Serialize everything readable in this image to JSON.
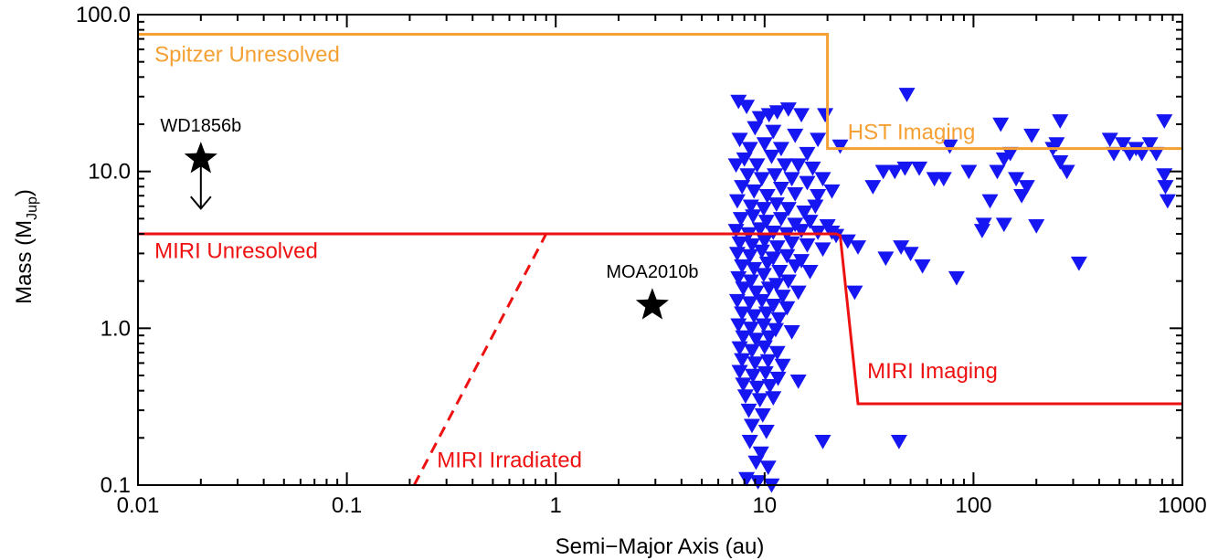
{
  "chart_data": {
    "type": "scatter",
    "title": "",
    "xlabel": "Semi−Major Axis (au)",
    "ylabel_main": "Mass (M",
    "ylabel_sub": "Jup",
    "ylabel_end": ")",
    "xscale": "log",
    "yscale": "log",
    "xlim": [
      0.01,
      1000
    ],
    "ylim": [
      0.1,
      100
    ],
    "grid": false,
    "x_ticks": [
      {
        "value": 0.01,
        "label": "0.01"
      },
      {
        "value": 0.1,
        "label": "0.1"
      },
      {
        "value": 1,
        "label": "1"
      },
      {
        "value": 10,
        "label": "10"
      },
      {
        "value": 100,
        "label": "100"
      },
      {
        "value": 1000,
        "label": "1000"
      }
    ],
    "y_ticks": [
      {
        "value": 0.1,
        "label": "0.1"
      },
      {
        "value": 1,
        "label": "1.0"
      },
      {
        "value": 10,
        "label": "10.0"
      },
      {
        "value": 100,
        "label": "100.0"
      }
    ],
    "limit_curves": [
      {
        "name": "Spitzer Unresolved",
        "color": "#f5a033",
        "dashed": false,
        "points": [
          [
            0.01,
            75
          ],
          [
            20,
            75
          ],
          [
            20,
            14
          ],
          [
            1000,
            14
          ]
        ]
      },
      {
        "name": "MIRI Unresolved",
        "color": "#ee1111",
        "dashed": false,
        "points": [
          [
            0.01,
            4
          ],
          [
            22,
            4
          ],
          [
            23,
            3.9
          ],
          [
            28,
            0.33
          ],
          [
            1000,
            0.33
          ]
        ]
      },
      {
        "name": "MIRI Irradiated",
        "color": "#ee1111",
        "dashed": true,
        "points": [
          [
            0.21,
            0.1
          ],
          [
            0.9,
            4
          ]
        ]
      }
    ],
    "annotations": [
      {
        "text": "Spitzer Unresolved",
        "x": 0.012,
        "y": 50,
        "color": "#f5a033"
      },
      {
        "text": "HST Imaging",
        "x": 25,
        "y": 16,
        "color": "#f5a033"
      },
      {
        "text": "MIRI Unresolved",
        "x": 0.012,
        "y": 2.8,
        "color": "#ee1111"
      },
      {
        "text": "MIRI Imaging",
        "x": 31,
        "y": 0.48,
        "color": "#ee1111"
      },
      {
        "text": "MIRI Irradiated",
        "x": 0.27,
        "y": 0.13,
        "color": "#ee1111"
      }
    ],
    "stars": [
      {
        "name": "WD1856b",
        "x": 0.02,
        "y": 12,
        "upper_limit_to": 5.8
      },
      {
        "name": "MOA2010b",
        "x": 2.9,
        "y": 1.4
      }
    ],
    "triangle_color": "#1616f2",
    "points": [
      [
        7.5,
        28
      ],
      [
        8.2,
        26
      ],
      [
        9.5,
        22
      ],
      [
        10.5,
        23
      ],
      [
        11.5,
        24
      ],
      [
        13,
        25
      ],
      [
        15,
        23
      ],
      [
        19.5,
        23
      ],
      [
        9,
        19
      ],
      [
        11,
        18
      ],
      [
        14,
        17
      ],
      [
        18,
        16
      ],
      [
        7.6,
        16
      ],
      [
        8.5,
        14
      ],
      [
        10,
        15
      ],
      [
        12,
        14
      ],
      [
        16,
        13
      ],
      [
        8,
        12
      ],
      [
        9.2,
        11
      ],
      [
        10.8,
        12.5
      ],
      [
        12.5,
        11
      ],
      [
        14.5,
        11
      ],
      [
        17,
        10.5
      ],
      [
        7.3,
        11
      ],
      [
        8.3,
        9.5
      ],
      [
        9.7,
        9
      ],
      [
        11.2,
        9.5
      ],
      [
        13.5,
        9
      ],
      [
        16,
        8.5
      ],
      [
        19,
        9
      ],
      [
        7.8,
        8
      ],
      [
        8.9,
        7.5
      ],
      [
        10.3,
        7
      ],
      [
        12,
        7.8
      ],
      [
        14,
        7.2
      ],
      [
        18,
        7
      ],
      [
        21,
        7.5
      ],
      [
        7.4,
        6.5
      ],
      [
        8.6,
        6
      ],
      [
        9.9,
        5.8
      ],
      [
        11.4,
        6.2
      ],
      [
        13,
        5.8
      ],
      [
        15.5,
        5.5
      ],
      [
        17.5,
        6
      ],
      [
        7.7,
        5
      ],
      [
        8.8,
        5.2
      ],
      [
        10.2,
        4.8
      ],
      [
        12,
        5
      ],
      [
        14,
        4.6
      ],
      [
        16.5,
        4.8
      ],
      [
        20,
        4.5
      ],
      [
        7.3,
        4.2
      ],
      [
        8.4,
        4
      ],
      [
        9.5,
        4.3
      ],
      [
        11,
        4.1
      ],
      [
        12.8,
        4
      ],
      [
        15,
        4.2
      ],
      [
        18,
        4.1
      ],
      [
        22,
        3.9
      ],
      [
        7.6,
        3.5
      ],
      [
        8.7,
        3.4
      ],
      [
        10,
        3.6
      ],
      [
        11.5,
        3.3
      ],
      [
        13.5,
        3.5
      ],
      [
        16,
        3.4
      ],
      [
        19,
        3.2
      ],
      [
        7.4,
        3
      ],
      [
        8.5,
        2.9
      ],
      [
        9.7,
        3.1
      ],
      [
        11,
        2.8
      ],
      [
        12.8,
        2.9
      ],
      [
        15,
        2.7
      ],
      [
        7.8,
        2.5
      ],
      [
        8.9,
        2.4
      ],
      [
        10.3,
        2.6
      ],
      [
        11.8,
        2.3
      ],
      [
        14,
        2.5
      ],
      [
        16.5,
        2.3
      ],
      [
        7.5,
        2.1
      ],
      [
        8.6,
        2
      ],
      [
        9.9,
        2.2
      ],
      [
        11.4,
        1.9
      ],
      [
        13,
        2
      ],
      [
        7.9,
        1.8
      ],
      [
        9.1,
        1.7
      ],
      [
        10.5,
        1.8
      ],
      [
        12.2,
        1.6
      ],
      [
        14.5,
        1.7
      ],
      [
        7.4,
        1.5
      ],
      [
        8.5,
        1.45
      ],
      [
        9.7,
        1.5
      ],
      [
        11,
        1.4
      ],
      [
        12.8,
        1.35
      ],
      [
        7.8,
        1.25
      ],
      [
        8.9,
        1.2
      ],
      [
        10.2,
        1.25
      ],
      [
        11.7,
        1.15
      ],
      [
        7.5,
        1.05
      ],
      [
        8.6,
        1
      ],
      [
        9.9,
        1.05
      ],
      [
        11.3,
        0.98
      ],
      [
        13.5,
        0.95
      ],
      [
        7.9,
        0.88
      ],
      [
        9.1,
        0.85
      ],
      [
        10.5,
        0.88
      ],
      [
        7.6,
        0.75
      ],
      [
        8.7,
        0.72
      ],
      [
        10,
        0.76
      ],
      [
        11.5,
        0.7
      ],
      [
        7.8,
        0.63
      ],
      [
        9,
        0.6
      ],
      [
        10.4,
        0.62
      ],
      [
        12.2,
        0.58
      ],
      [
        7.6,
        0.53
      ],
      [
        8.8,
        0.5
      ],
      [
        10.1,
        0.52
      ],
      [
        11.6,
        0.48
      ],
      [
        14.5,
        0.46
      ],
      [
        7.9,
        0.44
      ],
      [
        9.2,
        0.42
      ],
      [
        10.6,
        0.43
      ],
      [
        8.1,
        0.37
      ],
      [
        9.5,
        0.35
      ],
      [
        11,
        0.36
      ],
      [
        8.4,
        0.3
      ],
      [
        9.8,
        0.28
      ],
      [
        8.7,
        0.24
      ],
      [
        10.2,
        0.22
      ],
      [
        8.5,
        0.19
      ],
      [
        9.6,
        0.16
      ],
      [
        9.1,
        0.14
      ],
      [
        10.4,
        0.13
      ],
      [
        8.2,
        0.11
      ],
      [
        9.3,
        0.105
      ],
      [
        10.8,
        0.1
      ],
      [
        19,
        0.19
      ],
      [
        44,
        0.19
      ],
      [
        25,
        3.6
      ],
      [
        28,
        3.3
      ],
      [
        38,
        2.8
      ],
      [
        45,
        3.3
      ],
      [
        50,
        3
      ],
      [
        57,
        2.5
      ],
      [
        83,
        2.1
      ],
      [
        110,
        4.2
      ],
      [
        112,
        4.6
      ],
      [
        140,
        4.6
      ],
      [
        200,
        4.5
      ],
      [
        320,
        2.6
      ],
      [
        21,
        4.1
      ],
      [
        27,
        1.7
      ],
      [
        23,
        14.5
      ],
      [
        33,
        8
      ],
      [
        37,
        10
      ],
      [
        42,
        10
      ],
      [
        47,
        10.5
      ],
      [
        55,
        10.5
      ],
      [
        65,
        9
      ],
      [
        72,
        9
      ],
      [
        77,
        14.5
      ],
      [
        130,
        10
      ],
      [
        140,
        12
      ],
      [
        150,
        13
      ],
      [
        160,
        9
      ],
      [
        170,
        7
      ],
      [
        190,
        17
      ],
      [
        240,
        14
      ],
      [
        250,
        15
      ],
      [
        260,
        11.5
      ],
      [
        280,
        10
      ],
      [
        470,
        13
      ],
      [
        520,
        15
      ],
      [
        560,
        13
      ],
      [
        600,
        14
      ],
      [
        640,
        13
      ],
      [
        700,
        15
      ],
      [
        750,
        13
      ],
      [
        820,
        21
      ],
      [
        820,
        9.5
      ],
      [
        830,
        8
      ],
      [
        850,
        6.5
      ],
      [
        48,
        31
      ],
      [
        135,
        20
      ],
      [
        260,
        21
      ],
      [
        450,
        16
      ],
      [
        95,
        10
      ],
      [
        120,
        6.5
      ],
      [
        180,
        8
      ]
    ]
  }
}
